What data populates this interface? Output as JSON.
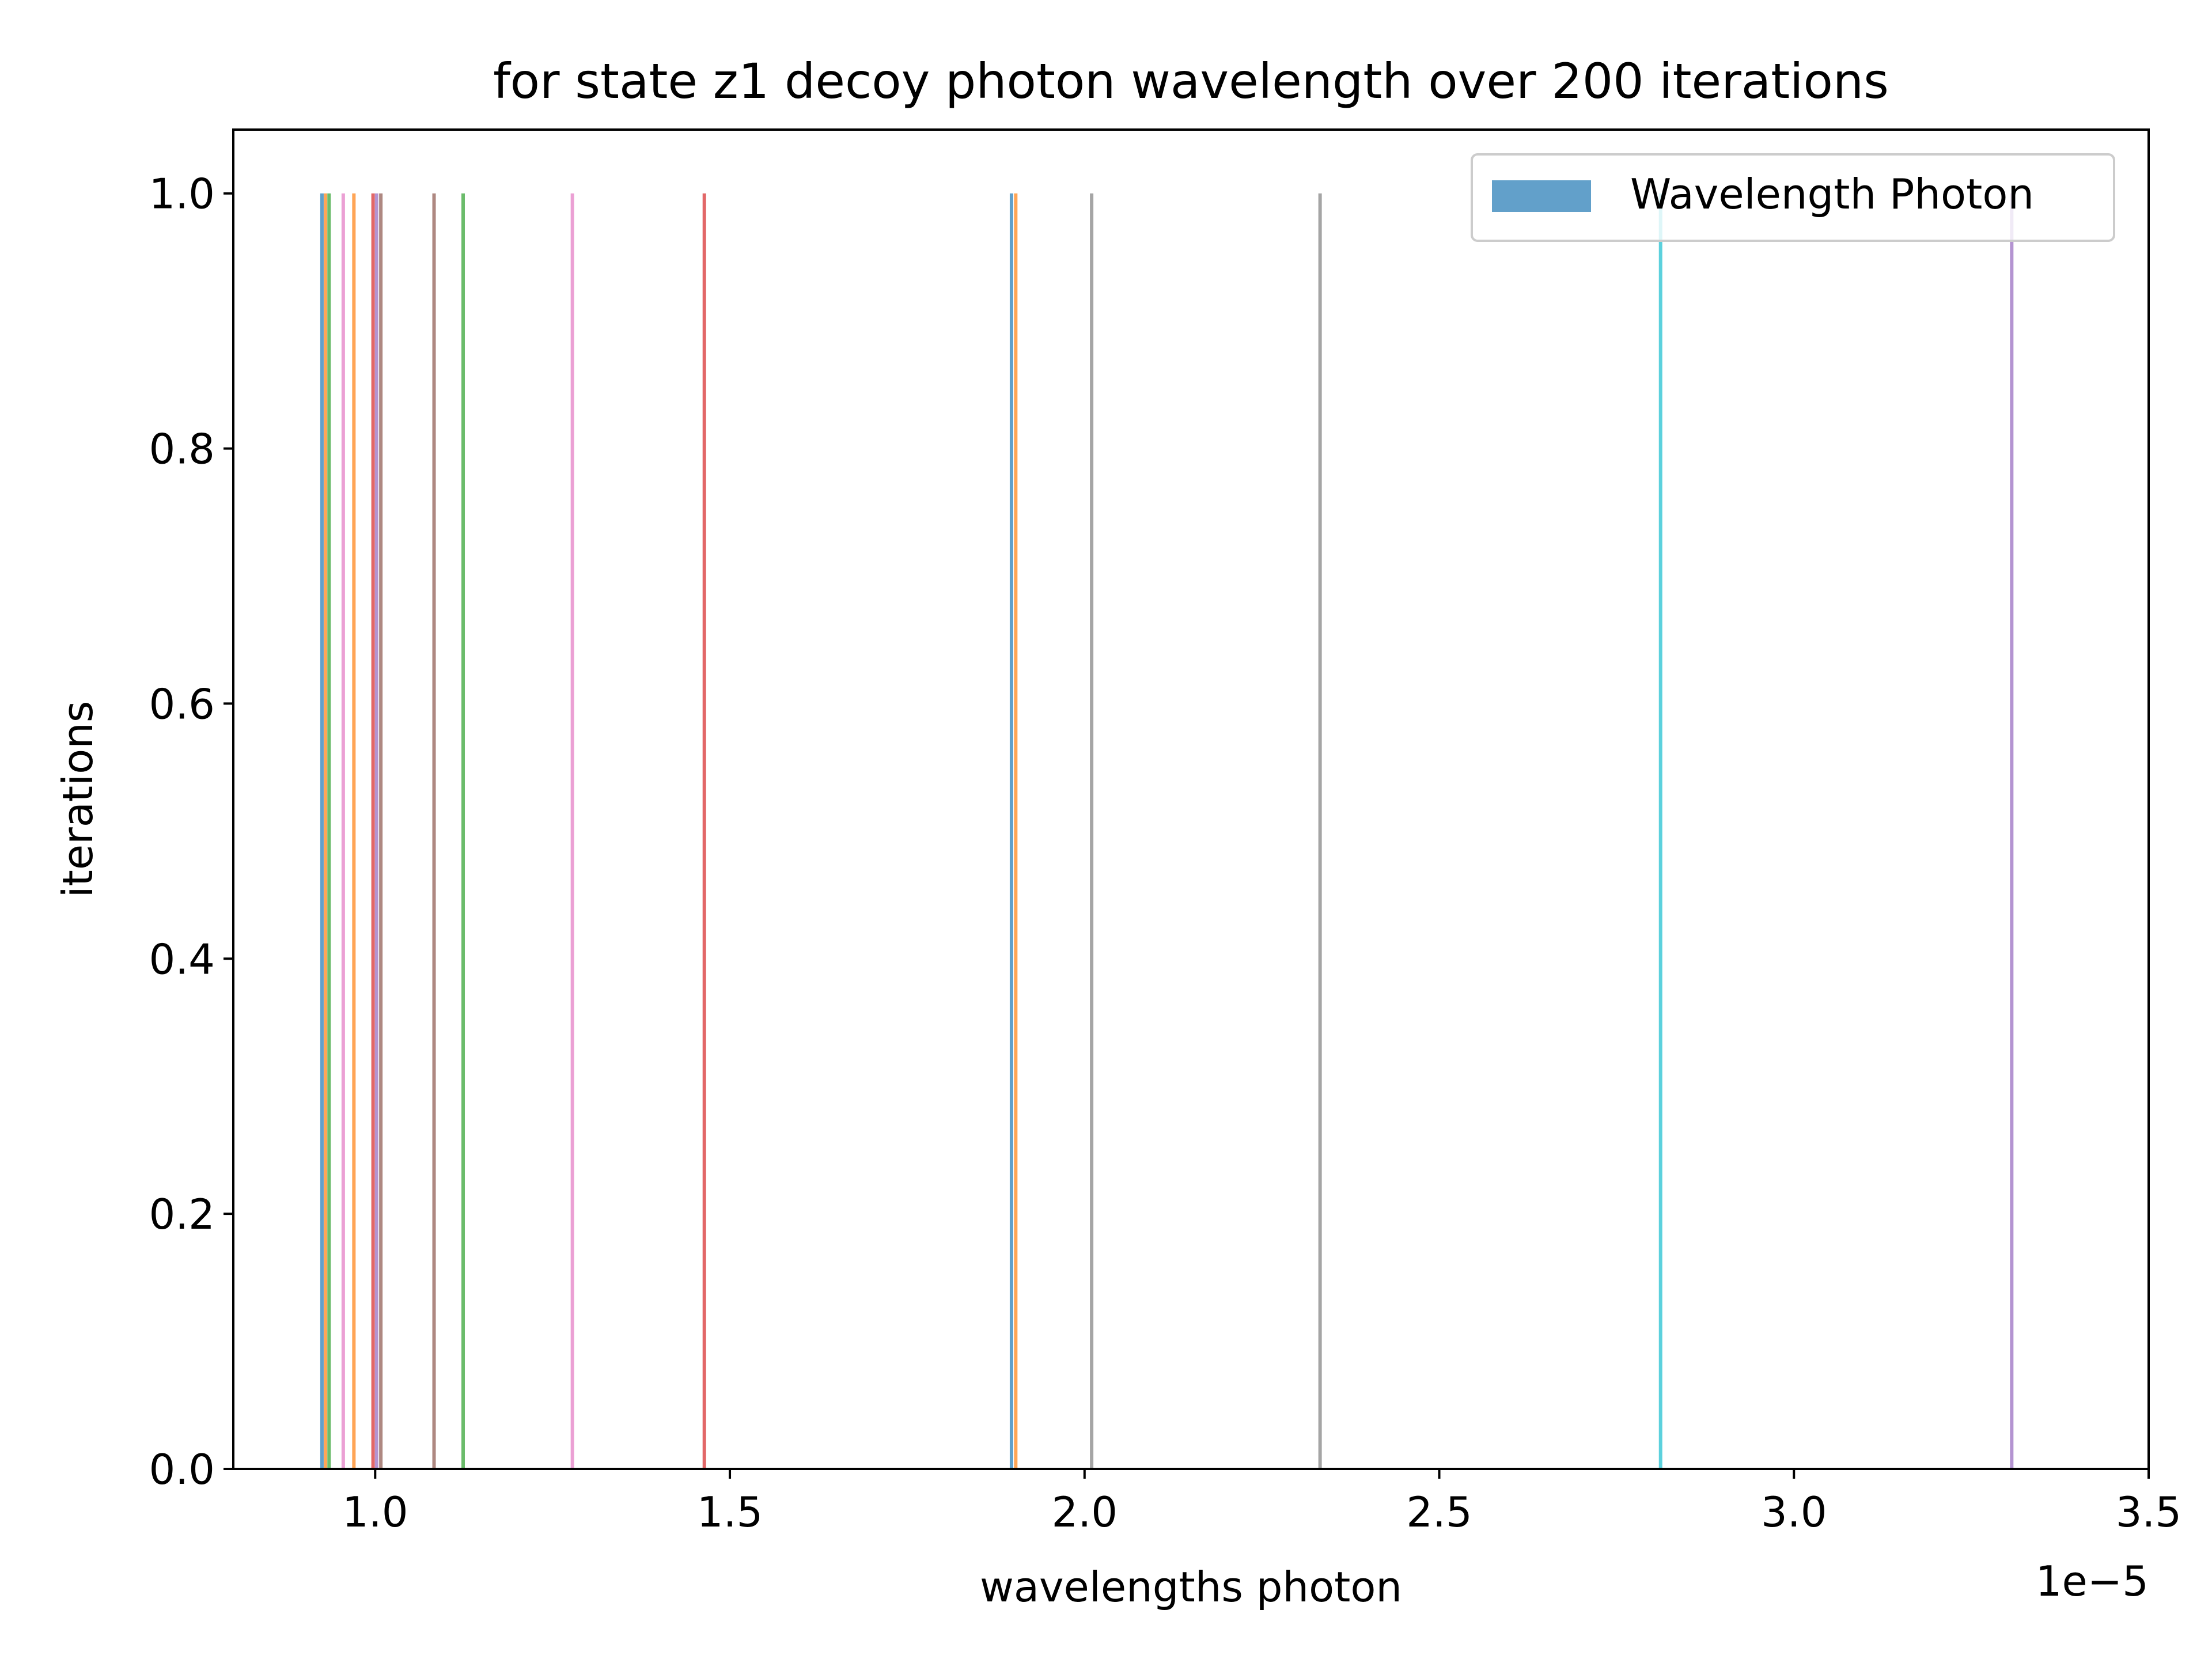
{
  "chart_data": {
    "type": "bar",
    "title": "for state z1 decoy photon wavelength over 200 iterations",
    "xlabel": "wavelengths photon",
    "ylabel": "iterations",
    "x_offset_label": "1e−5",
    "xlim": [
      0.8,
      3.5
    ],
    "ylim": [
      0.0,
      1.05
    ],
    "x_ticks": [
      1.0,
      1.5,
      2.0,
      2.5,
      3.0,
      3.5
    ],
    "x_tick_labels": [
      "1.0",
      "1.5",
      "2.0",
      "2.5",
      "3.0",
      "3.5"
    ],
    "y_ticks": [
      0.0,
      0.2,
      0.4,
      0.6,
      0.8,
      1.0
    ],
    "y_tick_labels": [
      "0.0",
      "0.2",
      "0.4",
      "0.6",
      "0.8",
      "1.0"
    ],
    "grid": false,
    "legend": {
      "position": "top-right",
      "entries": [
        {
          "label": "Wavelength Photon",
          "color": "#1f77b4"
        }
      ]
    },
    "bars": [
      {
        "x": 0.925,
        "value": 1.0,
        "color": "#1f77b4"
      },
      {
        "x": 0.93,
        "value": 1.0,
        "color": "#ff7f0e"
      },
      {
        "x": 0.935,
        "value": 1.0,
        "color": "#2ca02c"
      },
      {
        "x": 0.955,
        "value": 1.0,
        "color": "#e377c2"
      },
      {
        "x": 0.97,
        "value": 1.0,
        "color": "#ff7f0e"
      },
      {
        "x": 0.997,
        "value": 1.0,
        "color": "#d62728"
      },
      {
        "x": 1.002,
        "value": 1.0,
        "color": "#9467bd"
      },
      {
        "x": 1.008,
        "value": 1.0,
        "color": "#8c564b"
      },
      {
        "x": 1.083,
        "value": 1.0,
        "color": "#8c564b"
      },
      {
        "x": 1.124,
        "value": 1.0,
        "color": "#2ca02c"
      },
      {
        "x": 1.278,
        "value": 1.0,
        "color": "#e377c2"
      },
      {
        "x": 1.464,
        "value": 1.0,
        "color": "#d62728"
      },
      {
        "x": 1.897,
        "value": 1.0,
        "color": "#1f77b4"
      },
      {
        "x": 1.903,
        "value": 1.0,
        "color": "#ff7f0e"
      },
      {
        "x": 2.01,
        "value": 1.0,
        "color": "#7f7f7f"
      },
      {
        "x": 2.332,
        "value": 1.0,
        "color": "#7f7f7f"
      },
      {
        "x": 2.812,
        "value": 1.0,
        "color": "#17becf"
      },
      {
        "x": 3.307,
        "value": 1.0,
        "color": "#9467bd"
      }
    ]
  }
}
